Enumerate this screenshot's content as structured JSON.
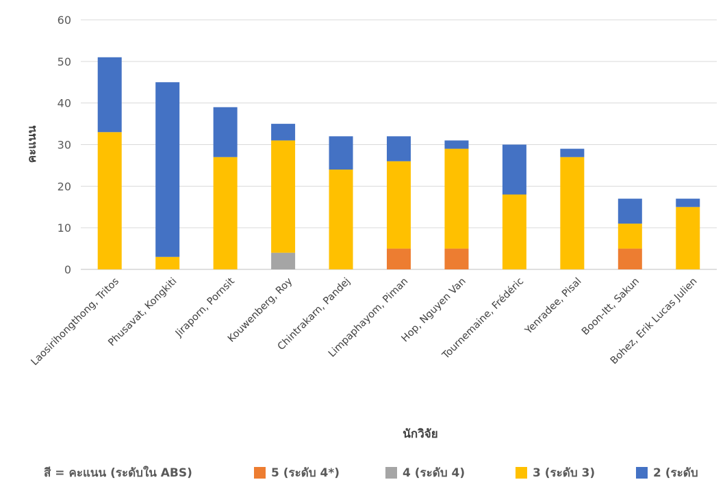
{
  "chart_data": {
    "type": "bar",
    "stacked": true,
    "xlabel": "นักวิจัย",
    "ylabel": "คะแนน",
    "ylim": [
      0,
      60
    ],
    "yticks": [
      0,
      10,
      20,
      30,
      40,
      50,
      60
    ],
    "grid": true,
    "categories": [
      "Laosirihongthong, Tritos",
      "Phusavat, Kongkiti",
      "Jiraporn, Pornsit",
      "Kouwenberg, Roy",
      "Chintrakarn, Pandej",
      "Limpaphayom, Piman",
      "Hop, Nguyen Van",
      "Tournemaine, Frédéric",
      "Yenradee, Pisal",
      "Boon-Itt, Sakun",
      "Bohez, Erik Lucas Julien"
    ],
    "series": [
      {
        "name": "5 (ระดับ 4*)",
        "color": "#ED7D31",
        "values": [
          0,
          0,
          0,
          0,
          0,
          5,
          5,
          0,
          0,
          5,
          0
        ]
      },
      {
        "name": "4 (ระดับ 4)",
        "color": "#A5A5A5",
        "values": [
          0,
          0,
          0,
          4,
          0,
          0,
          0,
          0,
          0,
          0,
          0
        ]
      },
      {
        "name": "3 (ระดับ 3)",
        "color": "#FFC000",
        "values": [
          33,
          3,
          27,
          27,
          24,
          21,
          24,
          18,
          27,
          6,
          15
        ]
      },
      {
        "name": "2 (ระดับ",
        "color": "#4472C4",
        "values": [
          18,
          42,
          12,
          4,
          8,
          6,
          2,
          12,
          2,
          6,
          2
        ]
      }
    ],
    "legend": {
      "title": "สี = คะแนน (ระดับใน ABS)",
      "position": "bottom"
    }
  }
}
